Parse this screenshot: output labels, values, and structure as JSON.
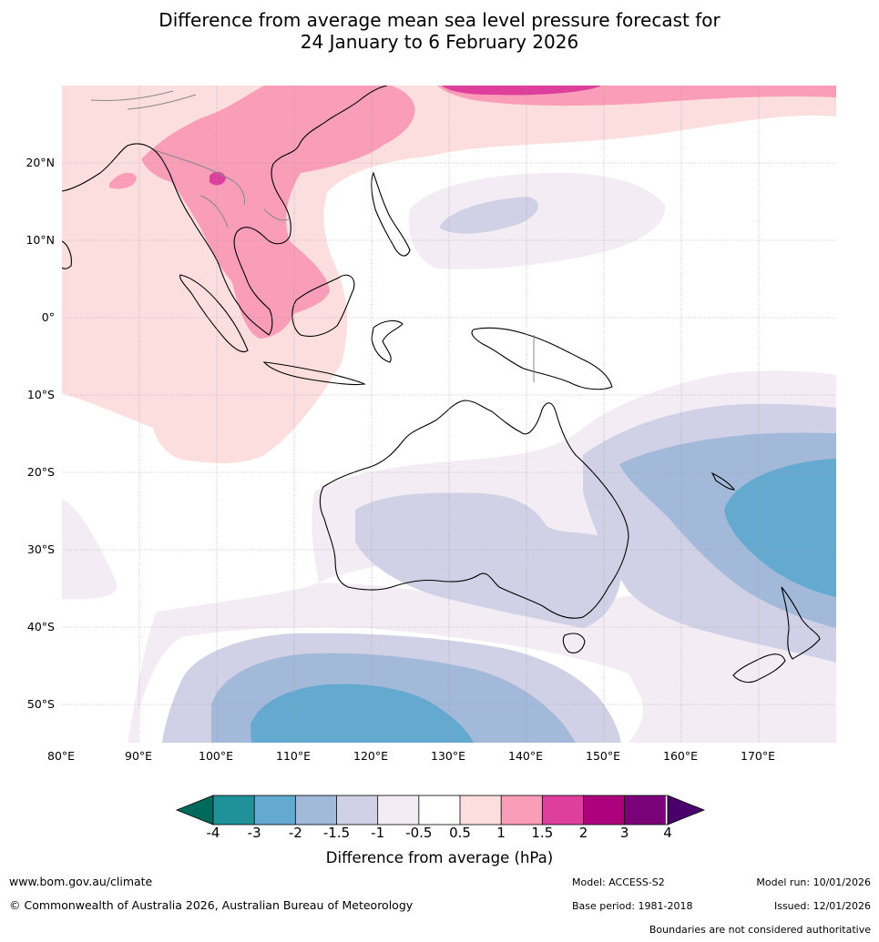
{
  "title": {
    "line1": "Difference from average mean sea level pressure forecast for",
    "line2": "24 January to 6 February 2026"
  },
  "map": {
    "lat_labels": [
      "20°N",
      "10°N",
      "0°",
      "10°S",
      "20°S",
      "30°S",
      "40°S",
      "50°S"
    ],
    "lon_labels": [
      "80°E",
      "90°E",
      "100°E",
      "110°E",
      "120°E",
      "130°E",
      "140°E",
      "150°E",
      "160°E",
      "170°E"
    ],
    "lat_range": [
      -55,
      30
    ],
    "lon_range": [
      80,
      180
    ]
  },
  "colorbar": {
    "tick_labels": [
      "-4",
      "-3",
      "-2",
      "-1.5",
      "-1",
      "-0.5",
      "0.5",
      "1",
      "1.5",
      "2",
      "3",
      "4"
    ],
    "colors": [
      "#006b5d",
      "#1f9198",
      "#64a9cf",
      "#a3b9d9",
      "#d0d1e6",
      "#f3ecf4",
      "#ffffff",
      "#fddedf",
      "#f99db8",
      "#de3f9d",
      "#ad017d",
      "#7a0177",
      "#4a006a"
    ],
    "label": "Difference from average (hPa)"
  },
  "footer": {
    "website": "www.bom.gov.au/climate",
    "copyright": "© Commonwealth of Australia 2026, Australian Bureau of Meteorology",
    "model": "Model: ACCESS-S2",
    "base_period": "Base period: 1981-2018",
    "model_run": "Model run: 10/01/2026",
    "issued": "Issued: 12/01/2026",
    "disclaimer": "Boundaries are not considered authoritative"
  }
}
